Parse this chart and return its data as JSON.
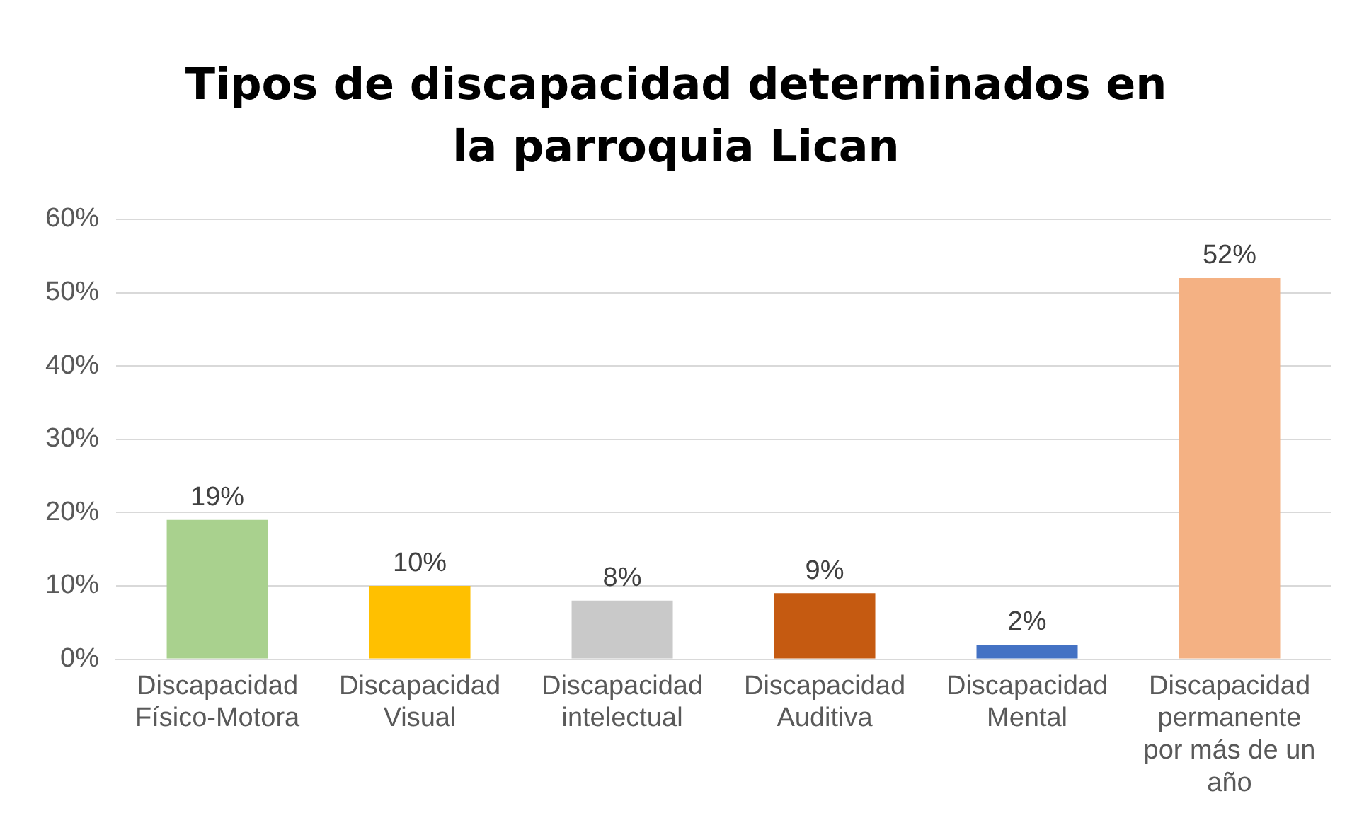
{
  "chart_data": {
    "type": "bar",
    "title": "Tipos de discapacidad determinados en la parroquia Lican",
    "categories": [
      "Discapacidad Físico-Motora",
      "Discapacidad Visual",
      "Discapacidad intelectual",
      "Discapacidad Auditiva",
      "Discapacidad Mental",
      "Discapacidad permanente por más de un año"
    ],
    "values": [
      19,
      10,
      8,
      9,
      2,
      52
    ],
    "colors": [
      "#a9d18e",
      "#ffc000",
      "#c9c9c9",
      "#c55a11",
      "#4472c4",
      "#f4b183"
    ],
    "value_labels": [
      "19%",
      "10%",
      "8%",
      "9%",
      "2%",
      "52%"
    ],
    "ylim": [
      0,
      60
    ],
    "yticks": [
      {
        "value": 0,
        "label": "0%"
      },
      {
        "value": 10,
        "label": "10%"
      },
      {
        "value": 20,
        "label": "20%"
      },
      {
        "value": 30,
        "label": "30%"
      },
      {
        "value": 40,
        "label": "40%"
      },
      {
        "value": 50,
        "label": "50%"
      },
      {
        "value": 60,
        "label": "60%"
      }
    ],
    "grid": "y",
    "legend": false
  }
}
